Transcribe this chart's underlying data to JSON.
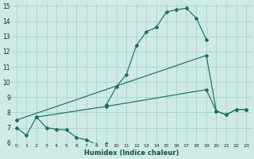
{
  "xlabel": "Humidex (Indice chaleur)",
  "bg_color": "#ceeae7",
  "grid_color": "#aed4d0",
  "line_color": "#1a7060",
  "xlim": [
    -0.5,
    23.5
  ],
  "ylim": [
    6,
    15.2
  ],
  "xticks": [
    0,
    1,
    2,
    3,
    4,
    5,
    6,
    7,
    8,
    9,
    10,
    11,
    12,
    13,
    14,
    15,
    16,
    17,
    18,
    19,
    20,
    21,
    22,
    23
  ],
  "yticks": [
    6,
    7,
    8,
    9,
    10,
    11,
    12,
    13,
    14,
    15
  ],
  "line1_x": [
    0,
    1,
    2,
    3,
    4,
    5,
    6,
    7,
    8,
    9
  ],
  "line1_y": [
    7.0,
    6.5,
    7.7,
    7.0,
    6.9,
    6.85,
    6.35,
    6.2,
    5.9,
    5.95
  ],
  "line2_x": [
    9,
    10,
    11,
    12,
    13,
    14,
    15,
    16,
    17,
    18,
    19
  ],
  "line2_y": [
    8.5,
    9.7,
    10.5,
    12.4,
    13.3,
    13.6,
    14.6,
    14.75,
    14.85,
    14.2,
    12.8
  ],
  "line3_x": [
    0,
    19,
    20,
    21,
    22,
    23
  ],
  "line3_y": [
    7.5,
    11.75,
    8.1,
    7.85,
    8.2,
    8.2
  ],
  "line4_x": [
    2,
    9,
    19,
    20,
    21,
    22,
    23
  ],
  "line4_y": [
    7.7,
    8.4,
    9.5,
    8.1,
    7.85,
    8.2,
    8.2
  ]
}
